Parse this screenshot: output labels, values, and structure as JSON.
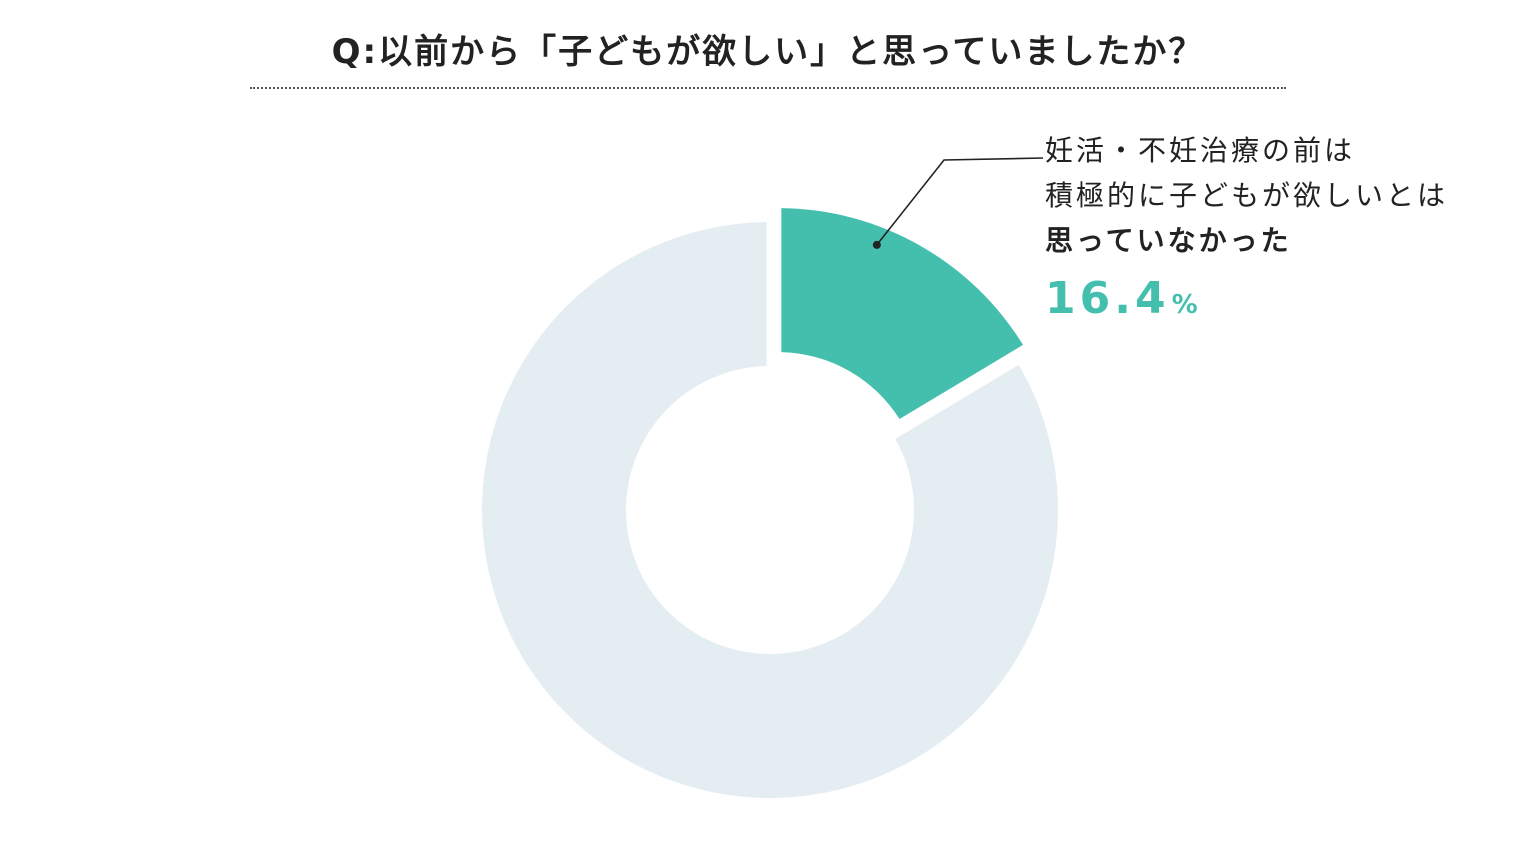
{
  "chart_data": {
    "type": "pie",
    "title": "Q:以前から「子どもが欲しい」と思っていましたか？",
    "slices": [
      {
        "label_lines": [
          "妊活・不妊治療の前は",
          "積極的に子どもが欲しいとは",
          "思っていなかった"
        ],
        "value": 16.4,
        "value_label": "16.4",
        "unit": "%",
        "color": "#44bfae",
        "exploded": true
      },
      {
        "label_lines": [],
        "value": 83.6,
        "color": "#e4edf2",
        "exploded": false
      }
    ],
    "start_angle_deg": 0,
    "direction": "clockwise",
    "inner_radius_ratio": 0.5,
    "grid": false,
    "legend": "none"
  }
}
